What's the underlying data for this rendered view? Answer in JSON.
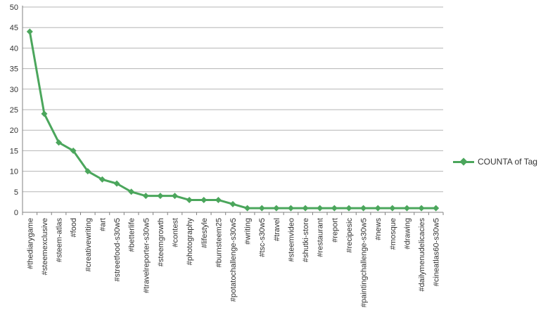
{
  "chart_data": {
    "type": "line",
    "title": "",
    "xlabel": "",
    "ylabel": "",
    "categories": [
      "#thediarygame",
      "#steemexclusive",
      "#steem-atlas",
      "#food",
      "#creativewriting",
      "#art",
      "#streetfood-s30w5",
      "#betterlife",
      "#travelreporter-s30w5",
      "#steemgrowth",
      "#contest",
      "#photography",
      "#lifestyle",
      "#burnsteem25",
      "#potatochallenge-s30w5",
      "#writing",
      "#tsc-s30w5",
      "#travel",
      "#steemvideo",
      "#shutki-store",
      "#restaurant",
      "#report",
      "#recipesic",
      "#paintingchallenge-s30w5",
      "#news",
      "#mosque",
      "#drawing",
      "#dailymenudelicacies",
      "#cineatlas60-s30w5"
    ],
    "series": [
      {
        "name": "COUNTA of Tag",
        "values": [
          44,
          24,
          17,
          15,
          10,
          8,
          7,
          5,
          4,
          4,
          4,
          3,
          3,
          3,
          2,
          1,
          1,
          1,
          1,
          1,
          1,
          1,
          1,
          1,
          1,
          1,
          1,
          1,
          1
        ]
      }
    ],
    "ylim": [
      0,
      50
    ],
    "ytick_step": 5,
    "yticks": [
      0,
      5,
      10,
      15,
      20,
      25,
      30,
      35,
      40,
      45,
      50
    ],
    "grid": "horizontal",
    "legend_position": "right",
    "marker": "diamond",
    "x_labels_rotation": -90,
    "colors": {
      "line": "#4BA65C",
      "grid": "#B5B5B5",
      "axis": "#808080",
      "text": "#333333",
      "background": "#FFFFFF"
    }
  }
}
